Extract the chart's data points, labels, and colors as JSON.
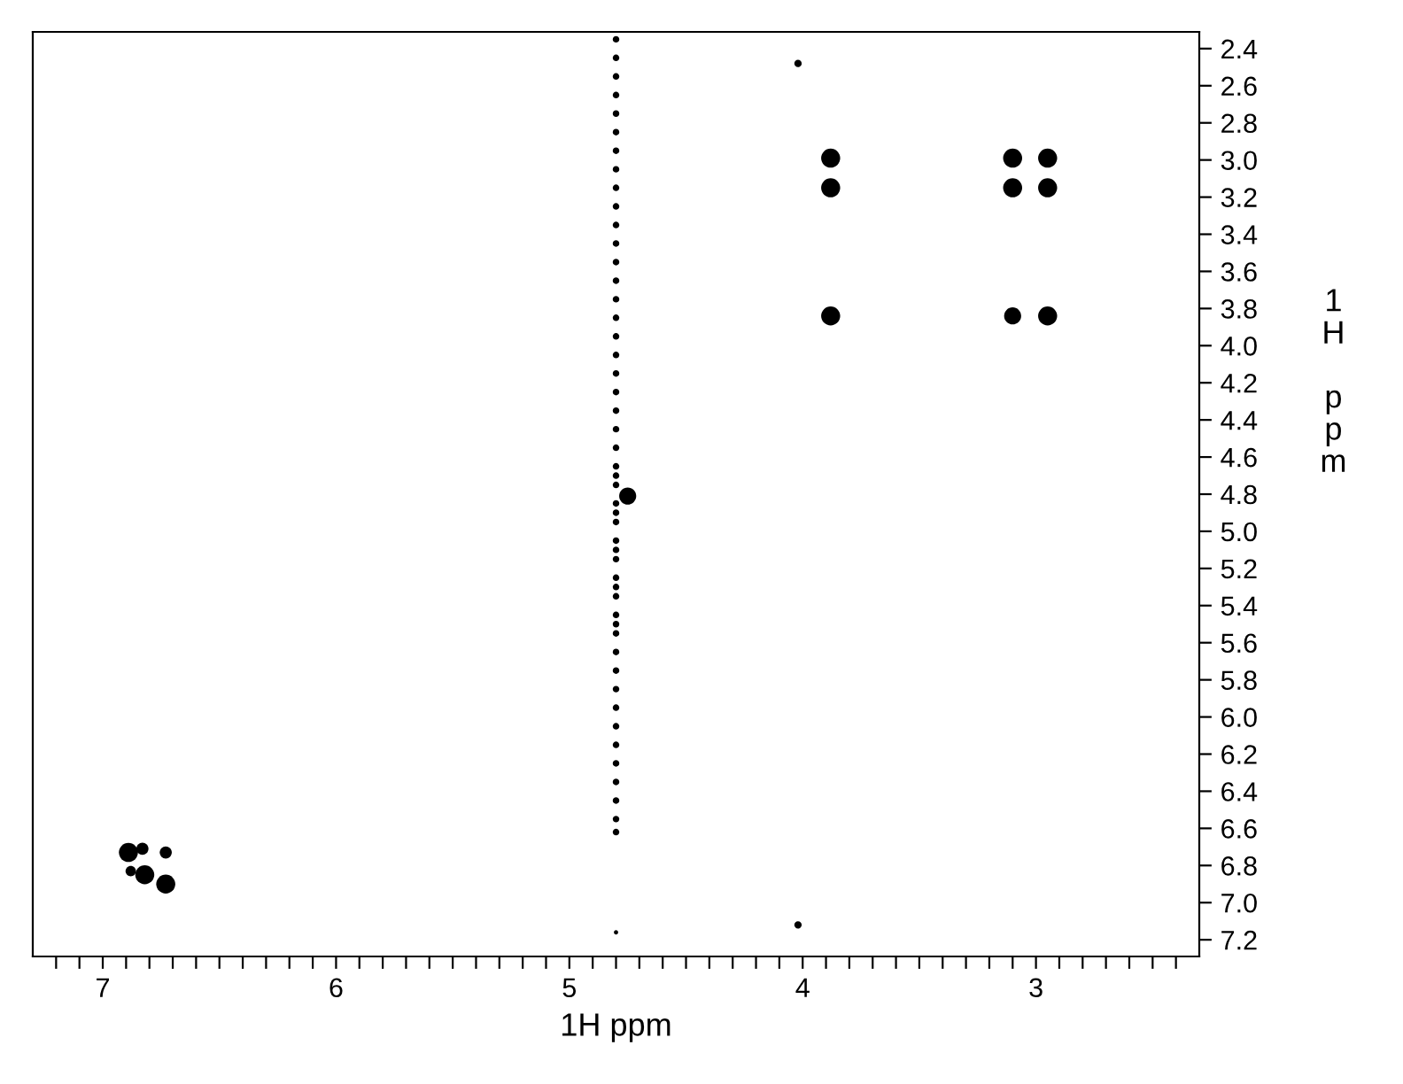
{
  "chart_data": {
    "type": "scatter",
    "xlabel": "1H ppm",
    "ylabel": "1H ppm",
    "marker": "circle",
    "grid": false,
    "legend": false,
    "xlim": [
      7.3,
      2.3
    ],
    "ylim": [
      7.29,
      2.31
    ],
    "xticks": [
      {
        "value": 7.2,
        "label": null
      },
      {
        "value": 7.1,
        "label": null
      },
      7,
      {
        "value": 6.9,
        "label": null
      },
      {
        "value": 6.8,
        "label": null
      },
      {
        "value": 6.7,
        "label": null
      },
      {
        "value": 6.6,
        "label": null
      },
      {
        "value": 6.5,
        "label": null
      },
      {
        "value": 6.4,
        "label": null
      },
      {
        "value": 6.3,
        "label": null
      },
      {
        "value": 6.2,
        "label": null
      },
      {
        "value": 6.1,
        "label": null
      },
      6,
      {
        "value": 5.9,
        "label": null
      },
      {
        "value": 5.8,
        "label": null
      },
      {
        "value": 5.7,
        "label": null
      },
      {
        "value": 5.6,
        "label": null
      },
      {
        "value": 5.5,
        "label": null
      },
      {
        "value": 5.4,
        "label": null
      },
      {
        "value": 5.3,
        "label": null
      },
      {
        "value": 5.2,
        "label": null
      },
      {
        "value": 5.1,
        "label": null
      },
      5,
      {
        "value": 4.9,
        "label": null
      },
      {
        "value": 4.8,
        "label": null
      },
      {
        "value": 4.7,
        "label": null
      },
      {
        "value": 4.6,
        "label": null
      },
      {
        "value": 4.5,
        "label": null
      },
      {
        "value": 4.4,
        "label": null
      },
      {
        "value": 4.3,
        "label": null
      },
      {
        "value": 4.2,
        "label": null
      },
      {
        "value": 4.1,
        "label": null
      },
      4,
      {
        "value": 3.9,
        "label": null
      },
      {
        "value": 3.8,
        "label": null
      },
      {
        "value": 3.7,
        "label": null
      },
      {
        "value": 3.6,
        "label": null
      },
      {
        "value": 3.5,
        "label": null
      },
      {
        "value": 3.4,
        "label": null
      },
      {
        "value": 3.3,
        "label": null
      },
      {
        "value": 3.2,
        "label": null
      },
      {
        "value": 3.1,
        "label": null
      },
      3,
      {
        "value": 2.9,
        "label": null
      },
      {
        "value": 2.8,
        "label": null
      },
      {
        "value": 2.7,
        "label": null
      },
      {
        "value": 2.6,
        "label": null
      },
      {
        "value": 2.5,
        "label": null
      },
      {
        "value": 2.4,
        "label": null
      }
    ],
    "yticks": [
      {
        "value": 2.4,
        "label": "2.4"
      },
      {
        "value": 2.6,
        "label": "2.6"
      },
      {
        "value": 2.8,
        "label": "2.8"
      },
      {
        "value": 3.0,
        "label": "3.0"
      },
      {
        "value": 3.2,
        "label": "3.2"
      },
      {
        "value": 3.4,
        "label": "3.4"
      },
      {
        "value": 3.6,
        "label": "3.6"
      },
      {
        "value": 3.8,
        "label": "3.8"
      },
      {
        "value": 4.0,
        "label": "4.0"
      },
      {
        "value": 4.2,
        "label": "4.2"
      },
      {
        "value": 4.4,
        "label": "4.4"
      },
      {
        "value": 4.6,
        "label": "4.6"
      },
      {
        "value": 4.8,
        "label": "4.8"
      },
      {
        "value": 5.0,
        "label": "5.0"
      },
      {
        "value": 5.2,
        "label": "5.2"
      },
      {
        "value": 5.4,
        "label": "5.4"
      },
      {
        "value": 5.6,
        "label": "5.6"
      },
      {
        "value": 5.8,
        "label": "5.8"
      },
      {
        "value": 6.0,
        "label": "6.0"
      },
      {
        "value": 6.2,
        "label": "6.2"
      },
      {
        "value": 6.4,
        "label": "6.4"
      },
      {
        "value": 6.6,
        "label": "6.6"
      },
      {
        "value": 6.8,
        "label": "6.8"
      },
      {
        "value": 7.0,
        "label": "7.0"
      },
      {
        "value": 7.2,
        "label": "7.2"
      }
    ],
    "series": [
      {
        "color": "#000000",
        "x": [
          3.88,
          3.88,
          3.88,
          3.1,
          3.1,
          3.1,
          2.95,
          2.95,
          2.95,
          6.89,
          6.82,
          6.73,
          6.73,
          6.88,
          6.83,
          4.02,
          4.02,
          4.75
        ],
        "values": [
          2.99,
          3.15,
          3.84,
          2.99,
          3.15,
          3.84,
          2.99,
          3.15,
          3.84,
          6.73,
          6.85,
          6.73,
          6.9,
          6.83,
          6.71,
          2.48,
          7.12,
          4.81
        ],
        "sizes": [
          1,
          1,
          1,
          1,
          1,
          0.8,
          1,
          1,
          1,
          1,
          1,
          0.4,
          1,
          0.3,
          0.4,
          0.15,
          0.15,
          0.8
        ]
      },
      {
        "color": "#000000",
        "x": [
          4.8,
          4.8,
          4.8,
          4.8,
          4.8,
          4.8,
          4.8,
          4.8,
          4.8,
          4.8,
          4.8,
          4.8,
          4.8,
          4.8,
          4.8,
          4.8,
          4.8,
          4.8,
          4.8,
          4.8,
          4.8,
          4.8,
          4.8,
          4.8,
          4.8,
          4.8,
          4.8,
          4.8,
          4.8,
          4.8,
          4.8,
          4.8,
          4.8,
          4.8,
          4.8,
          4.8,
          4.8,
          4.8,
          4.8,
          4.8,
          4.8,
          4.8,
          4.8,
          4.8,
          4.8,
          4.8,
          4.8,
          4.8,
          4.8,
          4.8
        ],
        "values": [
          2.35,
          2.45,
          2.55,
          2.65,
          2.75,
          2.85,
          2.95,
          3.05,
          3.15,
          3.25,
          3.35,
          3.45,
          3.55,
          3.65,
          3.75,
          3.85,
          3.95,
          4.05,
          4.15,
          4.25,
          4.35,
          4.45,
          4.55,
          4.65,
          4.75,
          4.85,
          4.95,
          5.05,
          5.15,
          5.25,
          5.35,
          5.45,
          5.55,
          5.65,
          5.75,
          5.85,
          5.95,
          6.05,
          6.15,
          6.25,
          6.35,
          6.45,
          6.55,
          6.62,
          7.16,
          4.7,
          4.9,
          5.1,
          5.3,
          5.5
        ],
        "sizes": [
          0.12,
          0.12,
          0.12,
          0.12,
          0.12,
          0.12,
          0.12,
          0.12,
          0.12,
          0.12,
          0.12,
          0.12,
          0.12,
          0.12,
          0.12,
          0.12,
          0.12,
          0.12,
          0.12,
          0.12,
          0.12,
          0.12,
          0.12,
          0.12,
          0.12,
          0.12,
          0.12,
          0.12,
          0.12,
          0.12,
          0.12,
          0.12,
          0.12,
          0.12,
          0.12,
          0.12,
          0.12,
          0.12,
          0.12,
          0.12,
          0.12,
          0.12,
          0.12,
          0.12,
          0.05,
          0.12,
          0.12,
          0.12,
          0.12,
          0.12
        ]
      }
    ]
  }
}
